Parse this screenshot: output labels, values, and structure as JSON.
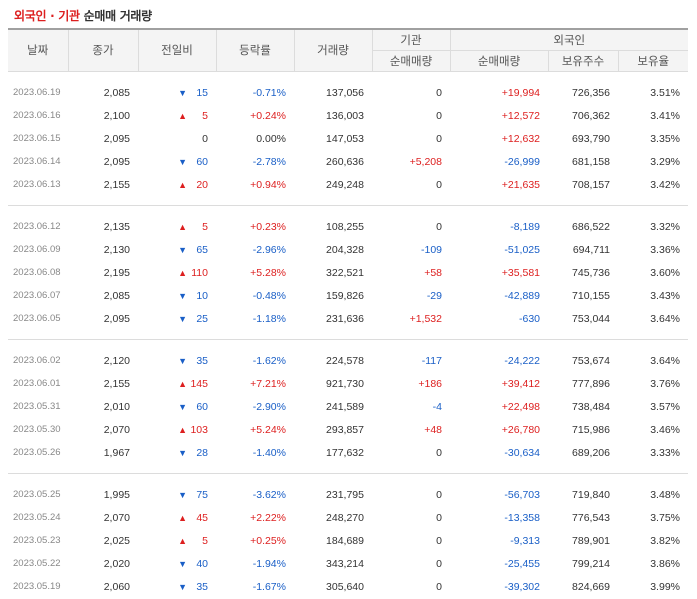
{
  "caption": {
    "part1": "외국인 · 기관",
    "part2": " 순매매 거래량"
  },
  "headers": {
    "date": "날짜",
    "close": "종가",
    "change": "전일비",
    "rate": "등락률",
    "volume": "거래량",
    "institution": "기관",
    "foreign": "외국인",
    "inst_net": "순매매량",
    "foreign_net": "순매매량",
    "foreign_hold": "보유주수",
    "foreign_ratio": "보유율"
  },
  "colors": {
    "up": "#dd1f1f",
    "down": "#1a5fc7",
    "caption_accent": "#dd1f1f"
  },
  "groups": [
    [
      {
        "date": "2023.06.19",
        "close": "2,085",
        "dir": "down",
        "change": "15",
        "rate": "-0.71%",
        "volume": "137,056",
        "inst": "0",
        "foreign": "+19,994",
        "hold": "726,356",
        "ratio": "3.51%"
      },
      {
        "date": "2023.06.16",
        "close": "2,100",
        "dir": "up",
        "change": "5",
        "rate": "+0.24%",
        "volume": "136,003",
        "inst": "0",
        "foreign": "+12,572",
        "hold": "706,362",
        "ratio": "3.41%"
      },
      {
        "date": "2023.06.15",
        "close": "2,095",
        "dir": "flat",
        "change": "0",
        "rate": "0.00%",
        "volume": "147,053",
        "inst": "0",
        "foreign": "+12,632",
        "hold": "693,790",
        "ratio": "3.35%"
      },
      {
        "date": "2023.06.14",
        "close": "2,095",
        "dir": "down",
        "change": "60",
        "rate": "-2.78%",
        "volume": "260,636",
        "inst": "+5,208",
        "foreign": "-26,999",
        "hold": "681,158",
        "ratio": "3.29%"
      },
      {
        "date": "2023.06.13",
        "close": "2,155",
        "dir": "up",
        "change": "20",
        "rate": "+0.94%",
        "volume": "249,248",
        "inst": "0",
        "foreign": "+21,635",
        "hold": "708,157",
        "ratio": "3.42%"
      }
    ],
    [
      {
        "date": "2023.06.12",
        "close": "2,135",
        "dir": "up",
        "change": "5",
        "rate": "+0.23%",
        "volume": "108,255",
        "inst": "0",
        "foreign": "-8,189",
        "hold": "686,522",
        "ratio": "3.32%"
      },
      {
        "date": "2023.06.09",
        "close": "2,130",
        "dir": "down",
        "change": "65",
        "rate": "-2.96%",
        "volume": "204,328",
        "inst": "-109",
        "foreign": "-51,025",
        "hold": "694,711",
        "ratio": "3.36%"
      },
      {
        "date": "2023.06.08",
        "close": "2,195",
        "dir": "up",
        "change": "110",
        "rate": "+5.28%",
        "volume": "322,521",
        "inst": "+58",
        "foreign": "+35,581",
        "hold": "745,736",
        "ratio": "3.60%"
      },
      {
        "date": "2023.06.07",
        "close": "2,085",
        "dir": "down",
        "change": "10",
        "rate": "-0.48%",
        "volume": "159,826",
        "inst": "-29",
        "foreign": "-42,889",
        "hold": "710,155",
        "ratio": "3.43%"
      },
      {
        "date": "2023.06.05",
        "close": "2,095",
        "dir": "down",
        "change": "25",
        "rate": "-1.18%",
        "volume": "231,636",
        "inst": "+1,532",
        "foreign": "-630",
        "hold": "753,044",
        "ratio": "3.64%"
      }
    ],
    [
      {
        "date": "2023.06.02",
        "close": "2,120",
        "dir": "down",
        "change": "35",
        "rate": "-1.62%",
        "volume": "224,578",
        "inst": "-117",
        "foreign": "-24,222",
        "hold": "753,674",
        "ratio": "3.64%"
      },
      {
        "date": "2023.06.01",
        "close": "2,155",
        "dir": "up",
        "change": "145",
        "rate": "+7.21%",
        "volume": "921,730",
        "inst": "+186",
        "foreign": "+39,412",
        "hold": "777,896",
        "ratio": "3.76%"
      },
      {
        "date": "2023.05.31",
        "close": "2,010",
        "dir": "down",
        "change": "60",
        "rate": "-2.90%",
        "volume": "241,589",
        "inst": "-4",
        "foreign": "+22,498",
        "hold": "738,484",
        "ratio": "3.57%"
      },
      {
        "date": "2023.05.30",
        "close": "2,070",
        "dir": "up",
        "change": "103",
        "rate": "+5.24%",
        "volume": "293,857",
        "inst": "+48",
        "foreign": "+26,780",
        "hold": "715,986",
        "ratio": "3.46%"
      },
      {
        "date": "2023.05.26",
        "close": "1,967",
        "dir": "down",
        "change": "28",
        "rate": "-1.40%",
        "volume": "177,632",
        "inst": "0",
        "foreign": "-30,634",
        "hold": "689,206",
        "ratio": "3.33%"
      }
    ],
    [
      {
        "date": "2023.05.25",
        "close": "1,995",
        "dir": "down",
        "change": "75",
        "rate": "-3.62%",
        "volume": "231,795",
        "inst": "0",
        "foreign": "-56,703",
        "hold": "719,840",
        "ratio": "3.48%"
      },
      {
        "date": "2023.05.24",
        "close": "2,070",
        "dir": "up",
        "change": "45",
        "rate": "+2.22%",
        "volume": "248,270",
        "inst": "0",
        "foreign": "-13,358",
        "hold": "776,543",
        "ratio": "3.75%"
      },
      {
        "date": "2023.05.23",
        "close": "2,025",
        "dir": "up",
        "change": "5",
        "rate": "+0.25%",
        "volume": "184,689",
        "inst": "0",
        "foreign": "-9,313",
        "hold": "789,901",
        "ratio": "3.82%"
      },
      {
        "date": "2023.05.22",
        "close": "2,020",
        "dir": "down",
        "change": "40",
        "rate": "-1.94%",
        "volume": "343,214",
        "inst": "0",
        "foreign": "-25,455",
        "hold": "799,214",
        "ratio": "3.86%"
      },
      {
        "date": "2023.05.19",
        "close": "2,060",
        "dir": "down",
        "change": "35",
        "rate": "-1.67%",
        "volume": "305,640",
        "inst": "0",
        "foreign": "-39,302",
        "hold": "824,669",
        "ratio": "3.99%"
      }
    ]
  ]
}
